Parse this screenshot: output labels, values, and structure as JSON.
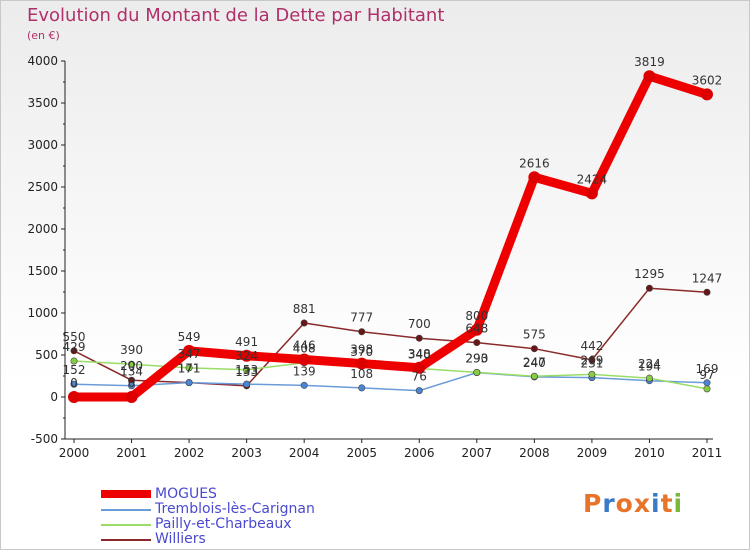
{
  "header": {
    "title": "Evolution du Montant de la Dette par Habitant",
    "subtitle": "(en €)"
  },
  "logo": {
    "text": "Proxiti",
    "colors": [
      "#e8742a",
      "#3a78c8",
      "#e8742a",
      "#e8742a",
      "#3a78c8",
      "#e8742a",
      "#7ab83a"
    ]
  },
  "chart_data": {
    "type": "line",
    "title": "Evolution du Montant de la Dette par Habitant",
    "subtitle": "(en €)",
    "xlabel": "",
    "ylabel": "",
    "ylim": [
      -500,
      4000
    ],
    "yticks": [
      -500,
      0,
      500,
      1000,
      1500,
      2000,
      2500,
      3000,
      3500,
      4000
    ],
    "grid": false,
    "legend_position": "bottom-left",
    "categories": [
      "2000",
      "2001",
      "2002",
      "2003",
      "2004",
      "2005",
      "2006",
      "2007",
      "2008",
      "2009",
      "2010",
      "2011"
    ],
    "series": [
      {
        "name": "MOGUES",
        "color": "#ee0000",
        "marker": "#dd0000",
        "values": [
          0,
          0,
          549,
          491,
          446,
          398,
          348,
          800,
          2616,
          2424,
          3819,
          3602
        ]
      },
      {
        "name": "Tremblois-lès-Carignan",
        "color": "#6a9cd8",
        "marker": "#4a86d6",
        "values": [
          152,
          134,
          171,
          153,
          139,
          108,
          76,
          290,
          240,
          231,
          194,
          169
        ]
      },
      {
        "name": "Pailly-et-Charbeaux",
        "color": "#99dd66",
        "marker": "#88cc44",
        "values": [
          429,
          390,
          347,
          324,
          408,
          370,
          340,
          293,
          247,
          269,
          224,
          97
        ]
      },
      {
        "name": "Williers",
        "color": "#8a2a2a",
        "marker": "#6a1616",
        "values": [
          550,
          200,
          171,
          133,
          881,
          777,
          700,
          648,
          575,
          442,
          1295,
          1247
        ]
      }
    ]
  }
}
